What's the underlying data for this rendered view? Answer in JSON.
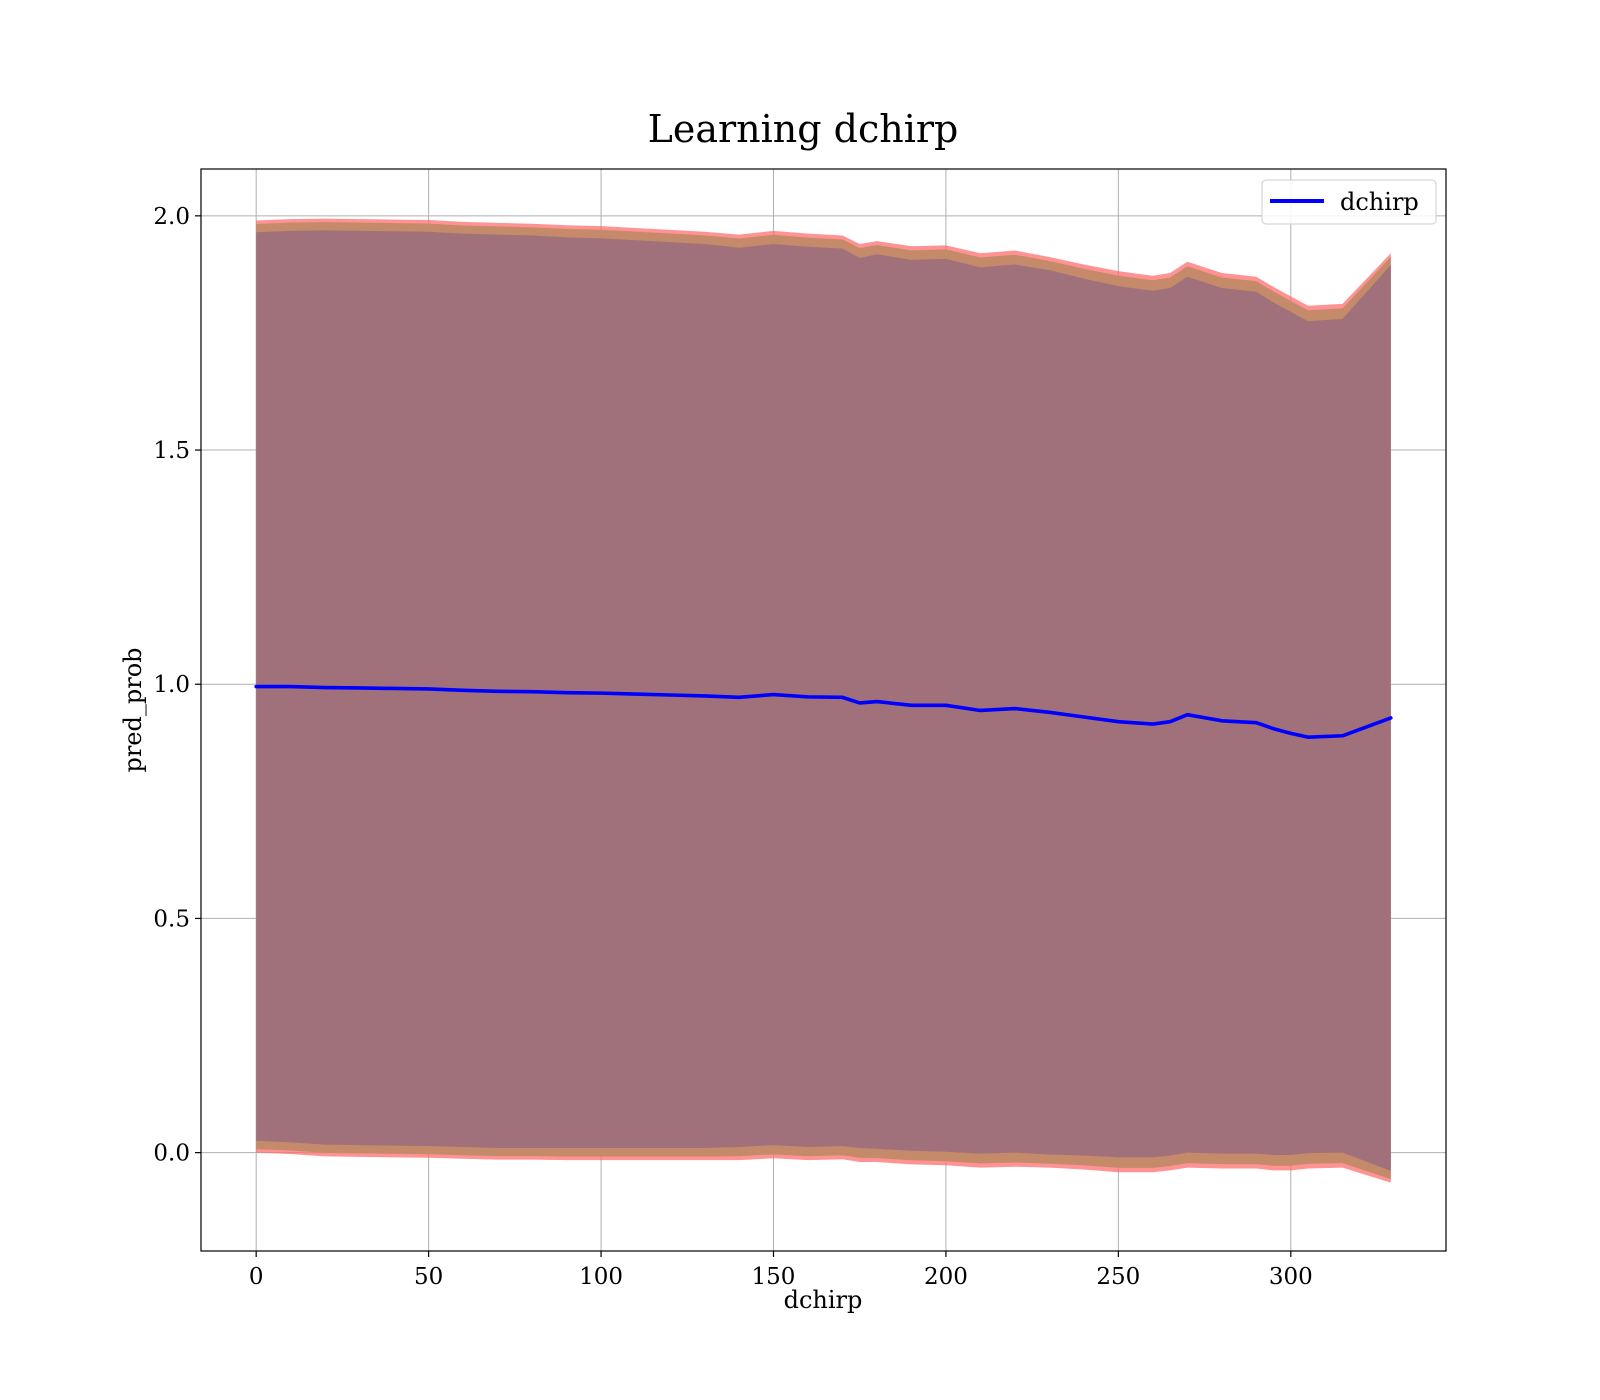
{
  "chart_data": {
    "type": "line",
    "title": "Learning dchirp",
    "xlabel": "dchirp",
    "ylabel": "pred_prob",
    "xlim": [
      -16,
      345
    ],
    "ylim": [
      -0.21,
      2.1
    ],
    "grid": true,
    "legend_position": "top-right",
    "x_ticks": [
      0,
      50,
      100,
      150,
      200,
      250,
      300
    ],
    "x_tick_labels": [
      "0",
      "50",
      "100",
      "150",
      "200",
      "250",
      "300"
    ],
    "y_ticks": [
      0.0,
      0.5,
      1.0,
      1.5,
      2.0
    ],
    "y_tick_labels": [
      "0.0",
      "0.5",
      "1.0",
      "1.5",
      "2.0"
    ],
    "colors": {
      "line": "#0000ff",
      "outer_band": "#ff6e6e",
      "middle_band": "#c48a6a",
      "inner_band": "#a0717a"
    },
    "series": [
      {
        "name": "dchirp",
        "x": [
          0,
          10,
          20,
          30,
          40,
          50,
          60,
          70,
          80,
          90,
          100,
          110,
          120,
          130,
          140,
          150,
          160,
          170,
          175,
          180,
          190,
          200,
          210,
          220,
          230,
          240,
          250,
          260,
          265,
          270,
          280,
          290,
          295,
          300,
          305,
          315,
          329
        ],
        "y": [
          0.995,
          0.995,
          0.993,
          0.992,
          0.991,
          0.99,
          0.987,
          0.985,
          0.984,
          0.982,
          0.981,
          0.979,
          0.977,
          0.975,
          0.972,
          0.978,
          0.973,
          0.972,
          0.96,
          0.963,
          0.955,
          0.955,
          0.944,
          0.948,
          0.94,
          0.93,
          0.92,
          0.915,
          0.92,
          0.935,
          0.922,
          0.918,
          0.905,
          0.895,
          0.887,
          0.89,
          0.928
        ]
      }
    ],
    "bands": {
      "inner_upper": [
        1.965,
        1.968,
        1.969,
        1.968,
        1.967,
        1.966,
        1.962,
        1.96,
        1.958,
        1.954,
        1.952,
        1.948,
        1.944,
        1.94,
        1.932,
        1.94,
        1.934,
        1.93,
        1.91,
        1.918,
        1.906,
        1.908,
        1.89,
        1.896,
        1.884,
        1.866,
        1.85,
        1.84,
        1.846,
        1.87,
        1.846,
        1.838,
        1.815,
        1.795,
        1.775,
        1.78,
        1.895
      ],
      "inner_lower": [
        0.025,
        0.022,
        0.017,
        0.016,
        0.015,
        0.014,
        0.012,
        0.01,
        0.01,
        0.01,
        0.01,
        0.01,
        0.01,
        0.01,
        0.012,
        0.016,
        0.012,
        0.014,
        0.01,
        0.008,
        0.004,
        0.002,
        -0.002,
        0.0,
        -0.004,
        -0.006,
        -0.01,
        -0.01,
        -0.006,
        0.0,
        -0.002,
        -0.002,
        -0.005,
        -0.005,
        -0.001,
        0.0,
        -0.039
      ],
      "outer_upper": [
        1.99,
        1.993,
        1.994,
        1.993,
        1.992,
        1.991,
        1.987,
        1.985,
        1.983,
        1.98,
        1.978,
        1.974,
        1.97,
        1.966,
        1.96,
        1.968,
        1.962,
        1.958,
        1.94,
        1.946,
        1.935,
        1.937,
        1.92,
        1.926,
        1.912,
        1.896,
        1.882,
        1.872,
        1.878,
        1.902,
        1.878,
        1.87,
        1.848,
        1.828,
        1.808,
        1.812,
        1.92
      ],
      "outer_lower": [
        0.0,
        -0.003,
        -0.008,
        -0.009,
        -0.01,
        -0.011,
        -0.013,
        -0.015,
        -0.015,
        -0.016,
        -0.016,
        -0.016,
        -0.016,
        -0.016,
        -0.016,
        -0.012,
        -0.016,
        -0.014,
        -0.02,
        -0.02,
        -0.025,
        -0.027,
        -0.032,
        -0.03,
        -0.032,
        -0.036,
        -0.042,
        -0.042,
        -0.038,
        -0.032,
        -0.034,
        -0.034,
        -0.038,
        -0.038,
        -0.034,
        -0.032,
        -0.064
      ]
    }
  }
}
